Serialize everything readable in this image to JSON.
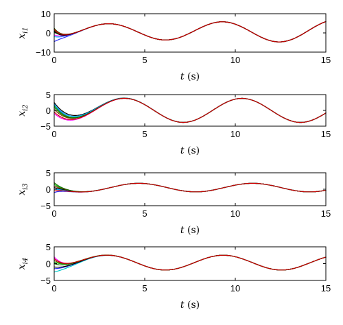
{
  "chart_data": [
    {
      "type": "line",
      "ylabel": "x",
      "ylabel_sub": "i1",
      "xlabel": "t",
      "xlabel_unit": "(s)",
      "xlim": [
        0,
        15
      ],
      "ylim": [
        -10,
        10
      ],
      "xticks": [
        "0",
        "5",
        "10",
        "15"
      ],
      "yticks": [
        "10",
        "0",
        "−10"
      ],
      "grid": false,
      "consensus": {
        "a": 3.5,
        "b": 0.16,
        "w": 1.0,
        "phi": -1.4,
        "c": 0.8
      },
      "series": [
        {
          "color": "#2b2bff",
          "y0": -4.5,
          "width": 0.8
        },
        {
          "color": "#00a8ff",
          "y0": -2.0,
          "width": 0.7
        },
        {
          "color": "#ff00ff",
          "y0": -1.0,
          "width": 0.7
        },
        {
          "color": "#00c000",
          "y0": 0.5,
          "width": 0.8
        },
        {
          "color": "#7a3d00",
          "y0": 1.5,
          "width": 0.7
        },
        {
          "color": "#1a6600",
          "y0": 2.5,
          "width": 0.7
        },
        {
          "color": "#000000",
          "y0": 1.0,
          "width": 0.6
        },
        {
          "color": "#cc0000",
          "y0": 2.0,
          "width": 0.7
        }
      ]
    },
    {
      "type": "line",
      "ylabel": "x",
      "ylabel_sub": "i2",
      "xlabel": "t",
      "xlabel_unit": "(s)",
      "xlim": [
        0,
        15
      ],
      "ylim": [
        -5,
        5
      ],
      "xticks": [
        "0",
        "5",
        "10",
        "15"
      ],
      "yticks": [
        "5",
        "0",
        "−5"
      ],
      "grid": false,
      "consensus": {
        "a": 3.8,
        "b": 0,
        "w": 0.97,
        "phi": -2.2,
        "c": 0
      },
      "series": [
        {
          "color": "#ff00ff",
          "y0": -1.0,
          "width": 1.3
        },
        {
          "color": "#2b2bff",
          "y0": 2.0,
          "width": 1.4
        },
        {
          "color": "#00c000",
          "y0": 1.5,
          "width": 1.5
        },
        {
          "color": "#7a3d00",
          "y0": 0.3,
          "width": 1.6
        },
        {
          "color": "#000000",
          "y0": 2.5,
          "width": 1.8
        },
        {
          "color": "#00a8ff",
          "y0": 2.0,
          "width": 1.7
        },
        {
          "color": "#1a6600",
          "y0": 1.0,
          "width": 1.5
        },
        {
          "color": "#cc0000",
          "y0": -0.5,
          "width": 1.4
        }
      ]
    },
    {
      "type": "line",
      "ylabel": "x",
      "ylabel_sub": "i3",
      "xlabel": "t",
      "xlabel_unit": "(s)",
      "xlim": [
        0,
        15
      ],
      "ylim": [
        -5,
        5
      ],
      "xticks": [
        "0",
        "5",
        "10",
        "15"
      ],
      "yticks": [
        "5",
        "0",
        "−5"
      ],
      "grid": false,
      "consensus": {
        "a": 1.3,
        "b": 0,
        "w": 1.0,
        "phi": -3.1,
        "c": 0.5
      },
      "series": [
        {
          "color": "#ff00ff",
          "y0": 1.0,
          "width": 0.9
        },
        {
          "color": "#2b2bff",
          "y0": -1.0,
          "width": 0.8
        },
        {
          "color": "#00c000",
          "y0": 1.5,
          "width": 0.8
        },
        {
          "color": "#7a3d00",
          "y0": 1.0,
          "width": 0.8
        },
        {
          "color": "#000000",
          "y0": 0.5,
          "width": 0.9
        },
        {
          "color": "#00a8ff",
          "y0": 0.0,
          "width": 0.8
        },
        {
          "color": "#1a6600",
          "y0": 2.0,
          "width": 0.8
        },
        {
          "color": "#cc0000",
          "y0": -0.5,
          "width": 0.8
        }
      ]
    },
    {
      "type": "line",
      "ylabel": "x",
      "ylabel_sub": "i4",
      "xlabel": "t",
      "xlabel_unit": "(s)",
      "xlim": [
        0,
        15
      ],
      "ylim": [
        -5,
        5
      ],
      "xticks": [
        "0",
        "5",
        "10",
        "15"
      ],
      "yticks": [
        "5",
        "0",
        "−5"
      ],
      "grid": false,
      "consensus": {
        "a": 2.2,
        "b": 0,
        "w": 0.98,
        "phi": -1.3,
        "c": 0.3
      },
      "series": [
        {
          "color": "#00c8c8",
          "y0": -2.5,
          "width": 1.6
        },
        {
          "color": "#2b2bff",
          "y0": -1.5,
          "width": 1.3
        },
        {
          "color": "#ff00ff",
          "y0": 2.0,
          "width": 1.0
        },
        {
          "color": "#00c000",
          "y0": 0.5,
          "width": 1.4
        },
        {
          "color": "#7a3d00",
          "y0": 1.0,
          "width": 1.2
        },
        {
          "color": "#000000",
          "y0": -1.0,
          "width": 1.2
        },
        {
          "color": "#1a6600",
          "y0": 0.0,
          "width": 1.3
        },
        {
          "color": "#cc0000",
          "y0": 1.5,
          "width": 1.1
        }
      ]
    }
  ]
}
